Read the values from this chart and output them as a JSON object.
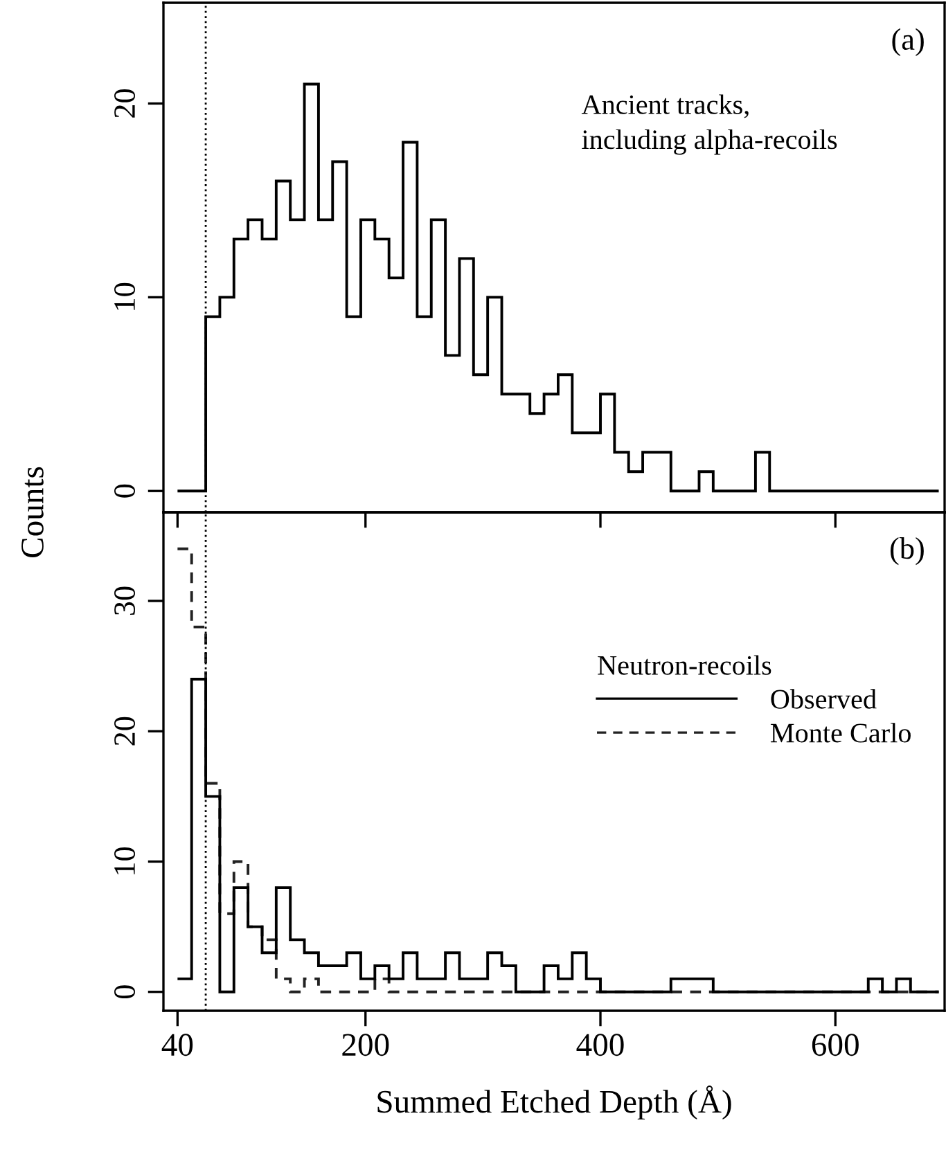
{
  "chart_data": [
    {
      "type": "histogram",
      "ylabel": "Counts",
      "annotations": [
        "(a)",
        "Ancient tracks,\nincluding alpha-recoils"
      ],
      "bins": [
        40,
        52,
        64,
        76,
        88,
        100,
        112,
        124,
        136,
        148,
        160,
        172,
        184,
        196,
        208,
        220,
        232,
        244,
        256,
        268,
        280,
        292,
        304,
        316,
        328,
        340,
        352,
        364,
        376,
        388,
        400,
        412,
        424,
        436,
        448,
        460,
        472,
        484,
        496,
        508,
        520,
        532,
        544,
        556,
        568,
        580,
        592,
        604,
        616,
        628,
        640,
        652,
        664,
        676,
        688
      ],
      "series": [
        {
          "color": "#000000",
          "line_style": "solid",
          "values": [
            0,
            0,
            9,
            10,
            13,
            14,
            13,
            16,
            14,
            21,
            14,
            17,
            9,
            14,
            13,
            11,
            18,
            9,
            14,
            7,
            12,
            6,
            10,
            5,
            5,
            4,
            5,
            6,
            3,
            3,
            5,
            2,
            1,
            2,
            2,
            0,
            0,
            1,
            0,
            0,
            0,
            2,
            0,
            0,
            0,
            0,
            0,
            0,
            0,
            0,
            0,
            0,
            0,
            0
          ]
        }
      ],
      "xlim": [
        28,
        693
      ],
      "xticks": [
        {
          "value": 40,
          "label": null
        },
        {
          "value": 200,
          "label": null
        },
        {
          "value": 400,
          "label": null
        },
        {
          "value": 600,
          "label": null
        }
      ],
      "ylim": [
        -1.1,
        25.2
      ],
      "yticks": [
        0,
        10,
        20
      ],
      "tick_labels": "y",
      "ref_lines": [
        {
          "axis": "x",
          "value": 64,
          "label": null,
          "line_style": "dotted",
          "color": "#000000"
        }
      ]
    },
    {
      "type": "histogram",
      "xlabel": "Summed Etched Depth (Å)",
      "legend_title": "Neutron-recoils",
      "legend": "right",
      "annotations": [
        "(b)"
      ],
      "bins": [
        40,
        52,
        64,
        76,
        88,
        100,
        112,
        124,
        136,
        148,
        160,
        172,
        184,
        196,
        208,
        220,
        232,
        244,
        256,
        268,
        280,
        292,
        304,
        316,
        328,
        340,
        352,
        364,
        376,
        388,
        400,
        412,
        424,
        436,
        448,
        460,
        472,
        484,
        496,
        508,
        520,
        532,
        544,
        556,
        568,
        580,
        592,
        604,
        616,
        628,
        640,
        652,
        664,
        676,
        688
      ],
      "series": [
        {
          "name": "Observed",
          "color": "#000000",
          "line_style": "solid",
          "values": [
            1,
            24,
            15,
            0,
            8,
            5,
            3,
            8,
            4,
            3,
            2,
            2,
            3,
            1,
            2,
            1,
            3,
            1,
            1,
            3,
            1,
            1,
            3,
            2,
            0,
            0,
            2,
            1,
            3,
            1,
            0,
            0,
            0,
            0,
            0,
            1,
            1,
            1,
            0,
            0,
            0,
            0,
            0,
            0,
            0,
            0,
            0,
            0,
            0,
            1,
            0,
            1,
            0,
            0
          ]
        },
        {
          "name": "Monte Carlo",
          "color": "#222222",
          "line_style": "dashed",
          "values": [
            34,
            28,
            16,
            6,
            10,
            5,
            4,
            1,
            0,
            1,
            0,
            0,
            0,
            0,
            1,
            0,
            0,
            0,
            0,
            0,
            0,
            0,
            0,
            0,
            0,
            0,
            0,
            0,
            0,
            0,
            0,
            0,
            0,
            0,
            0,
            0,
            0,
            0,
            0,
            0,
            0,
            0,
            0,
            0,
            0,
            0,
            0,
            0,
            0,
            0,
            0,
            0,
            0,
            0
          ]
        }
      ],
      "xlim": [
        28,
        693
      ],
      "xticks": [
        40,
        200,
        400,
        600
      ],
      "ylim": [
        -1.45,
        36.8
      ],
      "yticks": [
        0,
        10,
        20,
        30
      ],
      "ref_lines": [
        {
          "axis": "x",
          "value": 64,
          "label": null,
          "line_style": "dotted",
          "color": "#000000"
        }
      ]
    }
  ]
}
